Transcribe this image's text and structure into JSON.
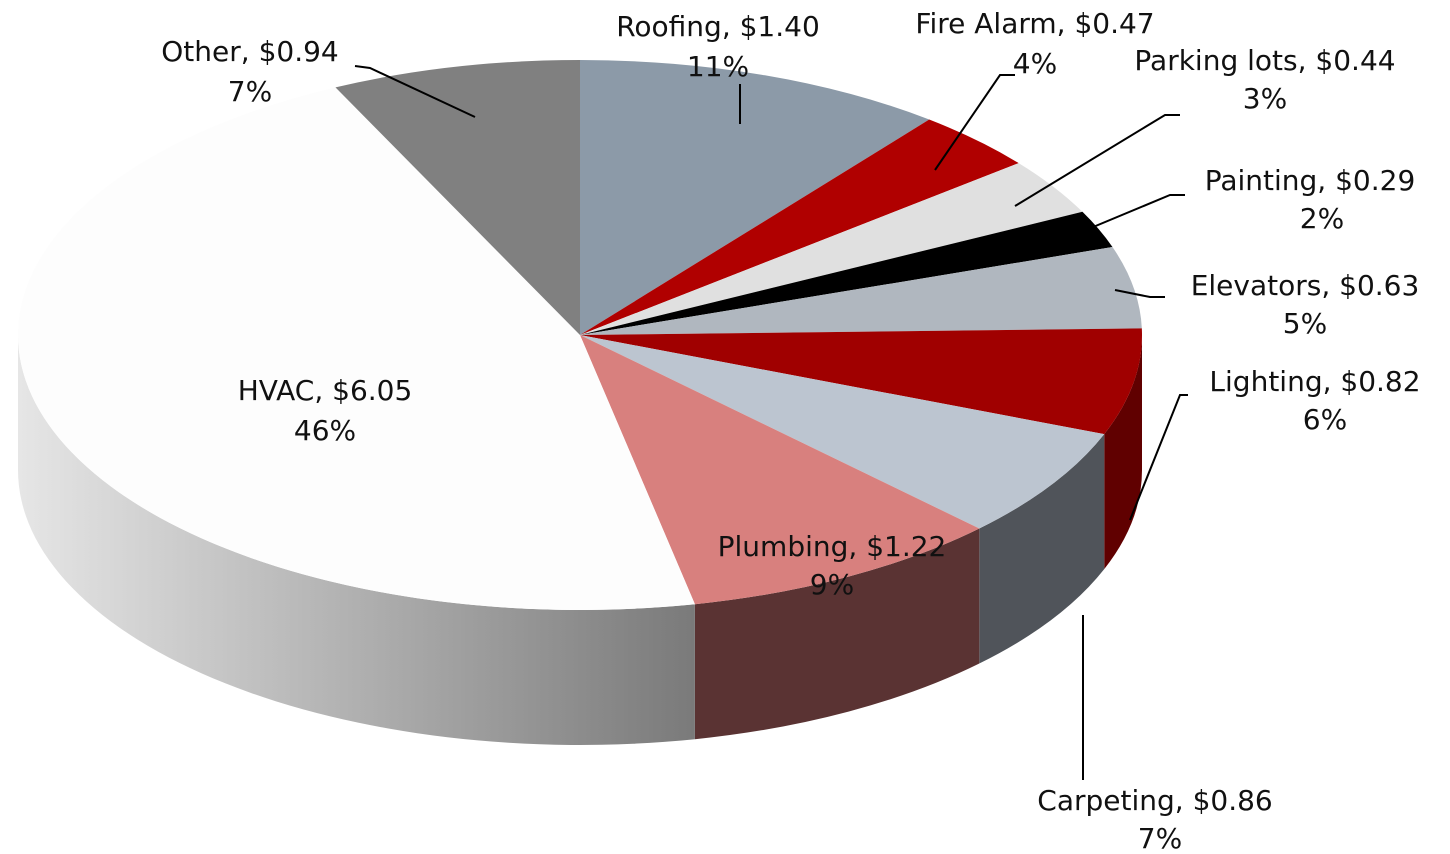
{
  "chart_data": {
    "type": "pie",
    "categories": [
      "Roofing",
      "Fire Alarm",
      "Parking lots",
      "Painting",
      "Elevators",
      "Lighting",
      "Carpeting",
      "Plumbing",
      "HVAC",
      "Other"
    ],
    "values": [
      1.4,
      0.47,
      0.44,
      0.29,
      0.63,
      0.82,
      0.86,
      1.22,
      6.05,
      0.94
    ],
    "value_labels": [
      "Roofing, $1.40",
      "Fire Alarm, $0.47",
      "Parking lots, $0.44",
      "Painting, $0.29",
      "Elevators, $0.63",
      "Lighting, $0.82",
      "Carpeting, $0.86",
      "Plumbing, $1.22",
      "HVAC, $6.05",
      "Other, $0.94"
    ],
    "percents": [
      11,
      4,
      3,
      2,
      5,
      6,
      7,
      9,
      46,
      7
    ],
    "percent_labels": [
      "11%",
      "4%",
      "3%",
      "2%",
      "5%",
      "6%",
      "7%",
      "9%",
      "46%",
      "7%"
    ],
    "colors": [
      "#8c9aa8",
      "#b00000",
      "#e0e0e0",
      "#000000",
      "#b0b7bf",
      "#a00000",
      "#bcc5d0",
      "#d8807e",
      "#fdfdfd",
      "#808080"
    ],
    "side_colors": [
      "#5c6670",
      "#700000",
      "#999999",
      "#000000",
      "#7a8088",
      "#600000",
      "#50545a",
      "#5a3333",
      "url(#hvacSide)",
      "#555555"
    ]
  }
}
